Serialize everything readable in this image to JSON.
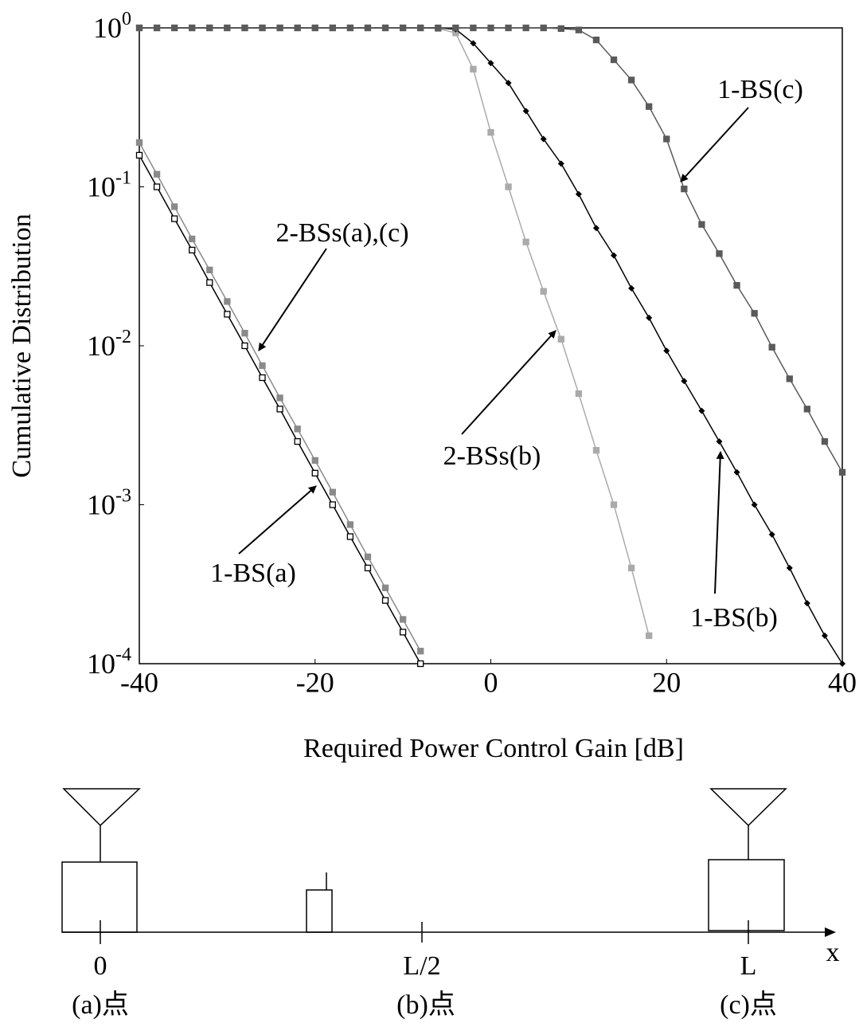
{
  "chart_data": {
    "type": "line",
    "log_y": true,
    "xlabel": "Required Power Control Gain [dB]",
    "ylabel": "Cumulative Distribution",
    "xlim": [
      -40,
      40
    ],
    "xticks": [
      -40,
      -20,
      0,
      20,
      40
    ],
    "ylim": [
      0.0001,
      1
    ],
    "yticks": [
      {
        "value": 1,
        "label": "10^0"
      },
      {
        "value": 0.1,
        "label": "10^-1"
      },
      {
        "value": 0.01,
        "label": "10^-2"
      },
      {
        "value": 0.001,
        "label": "10^-3"
      },
      {
        "value": 0.0001,
        "label": "10^-4"
      }
    ],
    "x": [
      -40,
      -38,
      -36,
      -34,
      -32,
      -30,
      -28,
      -26,
      -24,
      -22,
      -20,
      -18,
      -16,
      -14,
      -12,
      -10,
      -8,
      -6,
      -4,
      -2,
      0,
      2,
      4,
      6,
      8,
      10,
      12,
      14,
      16,
      18,
      20,
      22,
      24,
      26,
      28,
      30,
      32,
      34,
      36,
      38,
      40
    ],
    "series": [
      {
        "name": "1-BS(a)",
        "color": "#000000",
        "marker": "square-open",
        "values": [
          0.158,
          0.1,
          0.063,
          0.04,
          0.025,
          0.0158,
          0.01,
          0.0063,
          0.004,
          0.0025,
          0.00158,
          0.001,
          0.00063,
          0.0004,
          0.00025,
          0.000158,
          0.0001,
          null,
          null,
          null,
          null,
          null,
          null,
          null,
          null,
          null,
          null,
          null,
          null,
          null,
          null,
          null,
          null,
          null,
          null,
          null,
          null,
          null,
          null,
          null,
          null
        ]
      },
      {
        "name": "2-BSs(a),(c)",
        "color": "#8a8a8a",
        "marker": "square",
        "values": [
          0.19,
          0.12,
          0.075,
          0.047,
          0.03,
          0.019,
          0.012,
          0.0075,
          0.0047,
          0.003,
          0.0019,
          0.0012,
          0.00075,
          0.00047,
          0.0003,
          0.00019,
          0.00012,
          null,
          null,
          null,
          null,
          null,
          null,
          null,
          null,
          null,
          null,
          null,
          null,
          null,
          null,
          null,
          null,
          null,
          null,
          null,
          null,
          null,
          null,
          null,
          null
        ]
      },
      {
        "name": "2-BSs(b)",
        "color": "#aaaaaa",
        "marker": "square",
        "values": [
          1,
          1,
          1,
          1,
          1,
          1,
          1,
          1,
          1,
          1,
          1,
          1,
          1,
          1,
          1,
          1,
          1,
          0.99,
          0.93,
          0.55,
          0.22,
          0.1,
          0.045,
          0.022,
          0.011,
          0.005,
          0.0022,
          0.001,
          0.0004,
          0.00015,
          null,
          null,
          null,
          null,
          null,
          null,
          null,
          null,
          null,
          null,
          null
        ]
      },
      {
        "name": "1-BS(b)",
        "color": "#000000",
        "marker": "diamond",
        "values": [
          1,
          1,
          1,
          1,
          1,
          1,
          1,
          1,
          1,
          1,
          1,
          1,
          1,
          1,
          1,
          1,
          1,
          1,
          0.98,
          0.8,
          0.6,
          0.45,
          0.3,
          0.2,
          0.14,
          0.09,
          0.055,
          0.037,
          0.023,
          0.015,
          0.0093,
          0.006,
          0.0039,
          0.0025,
          0.0016,
          0.001,
          0.00065,
          0.0004,
          0.00024,
          0.00015,
          0.0001
        ]
      },
      {
        "name": "1-BS(c)",
        "color": "#5a5a5a",
        "marker": "square",
        "values": [
          1,
          1,
          1,
          1,
          1,
          1,
          1,
          1,
          1,
          1,
          1,
          1,
          1,
          1,
          1,
          1,
          1,
          1,
          1,
          1,
          1,
          1,
          1,
          1,
          0.99,
          0.97,
          0.84,
          0.63,
          0.47,
          0.32,
          0.2,
          0.097,
          0.058,
          0.038,
          0.024,
          0.016,
          0.0098,
          0.0062,
          0.004,
          0.0025,
          0.0016
        ]
      }
    ],
    "annotations": [
      "1-BS(c)",
      "2-BSs(a),(c)",
      "2-BSs(b)",
      "1-BS(a)",
      "1-BS(b)"
    ]
  },
  "diagram": {
    "positions": [
      "0",
      "L/2",
      "L"
    ],
    "points": [
      "(a)点",
      "(b)点",
      "(c)点"
    ],
    "axis": "x"
  }
}
